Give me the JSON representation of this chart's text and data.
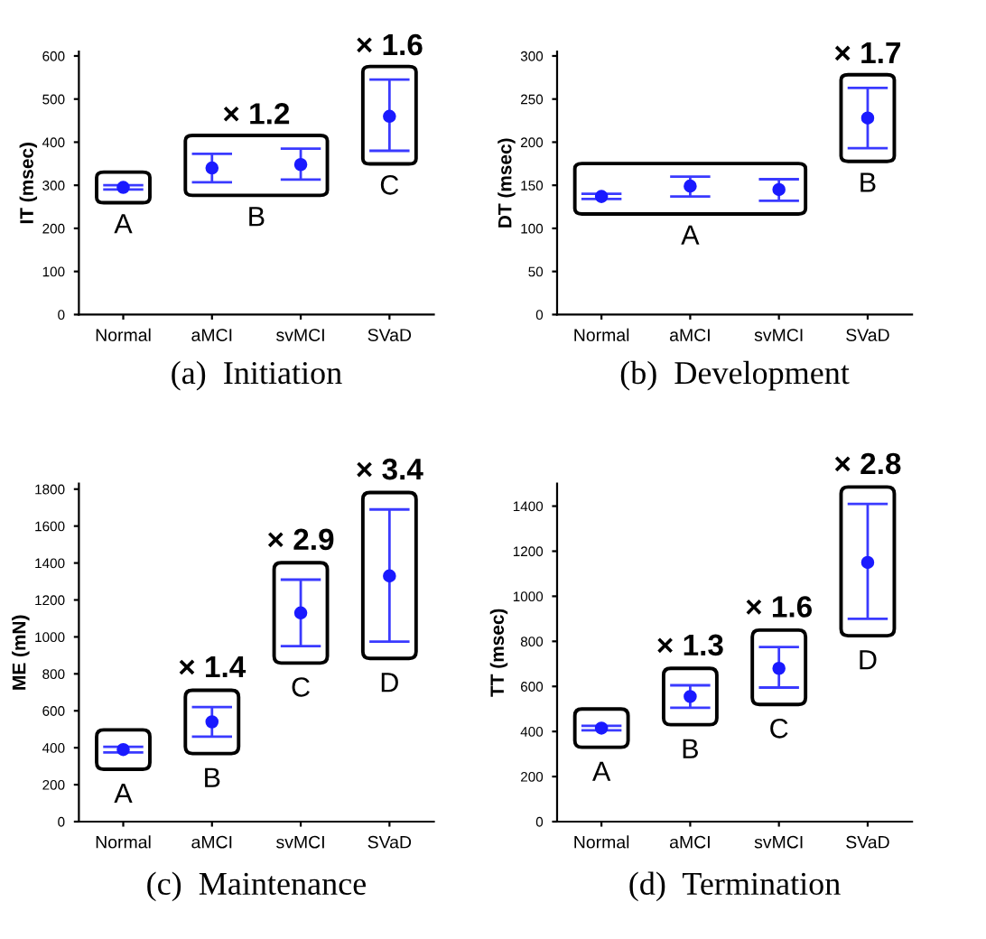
{
  "chart_data": [
    {
      "type": "scatter",
      "title": "(a)  Initiation",
      "ylabel": "IT (msec)",
      "categories": [
        "Normal",
        "aMCI",
        "svMCI",
        "SVaD"
      ],
      "values": [
        295,
        340,
        348,
        460
      ],
      "errors": [
        [
          290,
          300
        ],
        [
          307,
          373
        ],
        [
          313,
          385
        ],
        [
          380,
          545
        ]
      ],
      "color": "#1a1aff",
      "marker": "circle",
      "ylim": [
        0,
        610
      ],
      "yticks": [
        0,
        100,
        200,
        300,
        400,
        500,
        600
      ],
      "grid": false,
      "legend": false,
      "annotations": [
        "A",
        "B",
        "× 1.2",
        "C",
        "× 1.6"
      ]
    },
    {
      "type": "scatter",
      "title": "(b)  Development",
      "ylabel": "DT (msec)",
      "categories": [
        "Normal",
        "aMCI",
        "svMCI",
        "SVaD"
      ],
      "values": [
        137,
        149,
        145,
        228
      ],
      "errors": [
        [
          134,
          140
        ],
        [
          137,
          160
        ],
        [
          132,
          157
        ],
        [
          193,
          263
        ]
      ],
      "color": "#1a1aff",
      "marker": "circle",
      "ylim": [
        0,
        305
      ],
      "yticks": [
        0,
        50,
        100,
        150,
        200,
        250,
        300
      ],
      "grid": false,
      "legend": false,
      "annotations": [
        "A",
        "B",
        "× 1.7"
      ]
    },
    {
      "type": "scatter",
      "title": "(c)  Maintenance",
      "ylabel": "ME (mN)",
      "categories": [
        "Normal",
        "aMCI",
        "svMCI",
        "SVaD"
      ],
      "values": [
        390,
        540,
        1130,
        1330
      ],
      "errors": [
        [
          375,
          405
        ],
        [
          460,
          620
        ],
        [
          950,
          1310
        ],
        [
          975,
          1690
        ]
      ],
      "color": "#1a1aff",
      "marker": "circle",
      "ylim": [
        0,
        1830
      ],
      "yticks": [
        0,
        200,
        400,
        600,
        800,
        1000,
        1200,
        1400,
        1600,
        1800
      ],
      "grid": false,
      "legend": false,
      "annotations": [
        "A",
        "B",
        "× 1.4",
        "C",
        "× 2.9",
        "D",
        "× 3.4"
      ]
    },
    {
      "type": "scatter",
      "title": "(d)  Termination",
      "ylabel": "TT (msec)",
      "categories": [
        "Normal",
        "aMCI",
        "svMCI",
        "SVaD"
      ],
      "values": [
        415,
        555,
        680,
        1150
      ],
      "errors": [
        [
          405,
          425
        ],
        [
          505,
          605
        ],
        [
          595,
          775
        ],
        [
          900,
          1410
        ]
      ],
      "color": "#1a1aff",
      "marker": "circle",
      "ylim": [
        0,
        1500
      ],
      "yticks": [
        0,
        200,
        400,
        600,
        800,
        1000,
        1200,
        1400
      ],
      "grid": false,
      "legend": false,
      "annotations": [
        "A",
        "B",
        "× 1.3",
        "C",
        "× 1.6",
        "D",
        "× 2.8"
      ]
    }
  ]
}
